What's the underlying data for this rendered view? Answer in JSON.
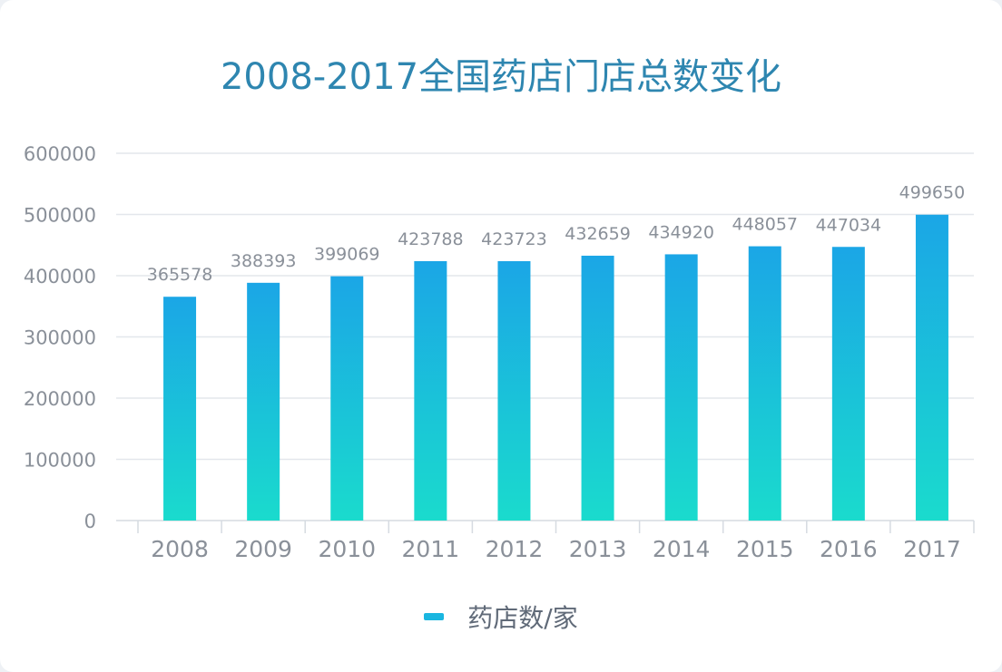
{
  "title": "2008-2017全国药店门店总数变化",
  "colors": {
    "bar_top": "#1ba6e6",
    "bar_bottom": "#1adbcd",
    "grid": "#e3e7ec",
    "axis_text": "#8a9099",
    "label_text": "#8a9099",
    "title": "#2e86b0",
    "legend_swatch": "#1ab6e0"
  },
  "legend": {
    "label": "药店数/家",
    "position": "bottom-center"
  },
  "chart_data": {
    "type": "bar",
    "categories": [
      "2008",
      "2009",
      "2010",
      "2011",
      "2012",
      "2013",
      "2014",
      "2015",
      "2016",
      "2017"
    ],
    "series": [
      {
        "name": "药店数/家",
        "values": [
          365578,
          388393,
          399069,
          423788,
          423723,
          432659,
          434920,
          448057,
          447034,
          499650
        ]
      }
    ],
    "ylim": [
      0,
      600000
    ],
    "yticks": [
      "0",
      "100000",
      "200000",
      "300000",
      "400000",
      "500000",
      "600000"
    ],
    "grid": true
  }
}
